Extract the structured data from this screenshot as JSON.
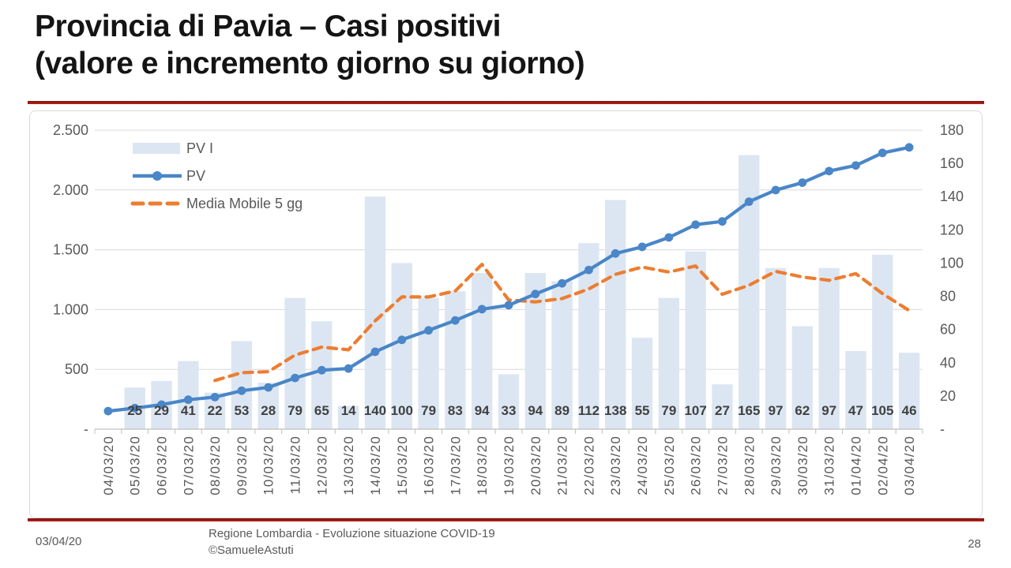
{
  "slide": {
    "title_line1": "Provincia di Pavia – Casi positivi",
    "title_line2": "(valore e incremento giorno su giorno)",
    "accent_color": "#9e1b1b",
    "footer": {
      "date": "03/04/20",
      "source_line1": "Regione Lombardia - Evoluzione situazione COVID-19",
      "source_line2": "©SamueleAstuti",
      "page_number": "28"
    }
  },
  "chart_data": {
    "type": "combo",
    "title": "",
    "categories": [
      "04/03/20",
      "05/03/20",
      "06/03/20",
      "07/03/20",
      "08/03/20",
      "09/03/20",
      "10/03/20",
      "11/03/20",
      "12/03/20",
      "13/03/20",
      "14/03/20",
      "15/03/20",
      "16/03/20",
      "17/03/20",
      "18/03/20",
      "19/03/20",
      "20/03/20",
      "21/03/20",
      "22/03/20",
      "23/03/20",
      "24/03/20",
      "25/03/20",
      "26/03/20",
      "27/03/20",
      "28/03/20",
      "29/03/20",
      "30/03/20",
      "31/03/20",
      "01/04/20",
      "02/04/20",
      "03/04/20"
    ],
    "series": [
      {
        "name": "PV I",
        "type": "bar",
        "axis": "right",
        "color": "#dce6f2",
        "values": [
          null,
          25,
          29,
          41,
          22,
          53,
          28,
          79,
          65,
          14,
          140,
          100,
          79,
          83,
          94,
          33,
          94,
          89,
          112,
          138,
          55,
          79,
          107,
          27,
          165,
          97,
          62,
          97,
          47,
          105,
          46
        ]
      },
      {
        "name": "PV",
        "type": "line",
        "axis": "left",
        "color": "#4a86c8",
        "values": [
          151,
          176,
          205,
          246,
          268,
          321,
          349,
          428,
          493,
          507,
          647,
          747,
          826,
          909,
          1003,
          1036,
          1130,
          1219,
          1331,
          1469,
          1524,
          1603,
          1710,
          1737,
          1902,
          1999,
          2061,
          2158,
          2205,
          2310,
          2356
        ]
      },
      {
        "name": "Media Mobile 5 gg",
        "type": "dashed-line",
        "axis": "right",
        "color": "#ed7d31",
        "values": [
          null,
          null,
          null,
          null,
          29.3,
          34,
          34.6,
          44.6,
          49.4,
          47.8,
          65.2,
          79.6,
          79.6,
          83.2,
          99.2,
          77.8,
          76.6,
          78.6,
          84.4,
          93.2,
          97.6,
          94.6,
          98.2,
          81.2,
          86.6,
          95,
          91.6,
          89.6,
          93.6,
          81.6,
          71.4
        ]
      }
    ],
    "data_labels_series": "PV I",
    "left_axis": {
      "min": 0,
      "max": 2500,
      "ticks": [
        {
          "v": 0,
          "label": "-"
        },
        {
          "v": 500,
          "label": "500"
        },
        {
          "v": 1000,
          "label": "1.000"
        },
        {
          "v": 1500,
          "label": "1.500"
        },
        {
          "v": 2000,
          "label": "2.000"
        },
        {
          "v": 2500,
          "label": "2.500"
        }
      ]
    },
    "right_axis": {
      "min": 0,
      "max": 180,
      "ticks": [
        {
          "v": 0,
          "label": "-"
        },
        {
          "v": 20,
          "label": "20"
        },
        {
          "v": 40,
          "label": "40"
        },
        {
          "v": 60,
          "label": "60"
        },
        {
          "v": 80,
          "label": "80"
        },
        {
          "v": 100,
          "label": "100"
        },
        {
          "v": 120,
          "label": "120"
        },
        {
          "v": 140,
          "label": "140"
        },
        {
          "v": 160,
          "label": "160"
        },
        {
          "v": 180,
          "label": "180"
        }
      ]
    },
    "legend": {
      "position": "top-left-inside",
      "entries": [
        "PV I",
        "PV",
        "Media Mobile 5 gg"
      ]
    },
    "grid": true,
    "style": {
      "grid_color": "#d9d9d9",
      "axis_color": "#bfbfbf",
      "tick_text_color": "#595959",
      "data_label_color": "#404040"
    }
  }
}
